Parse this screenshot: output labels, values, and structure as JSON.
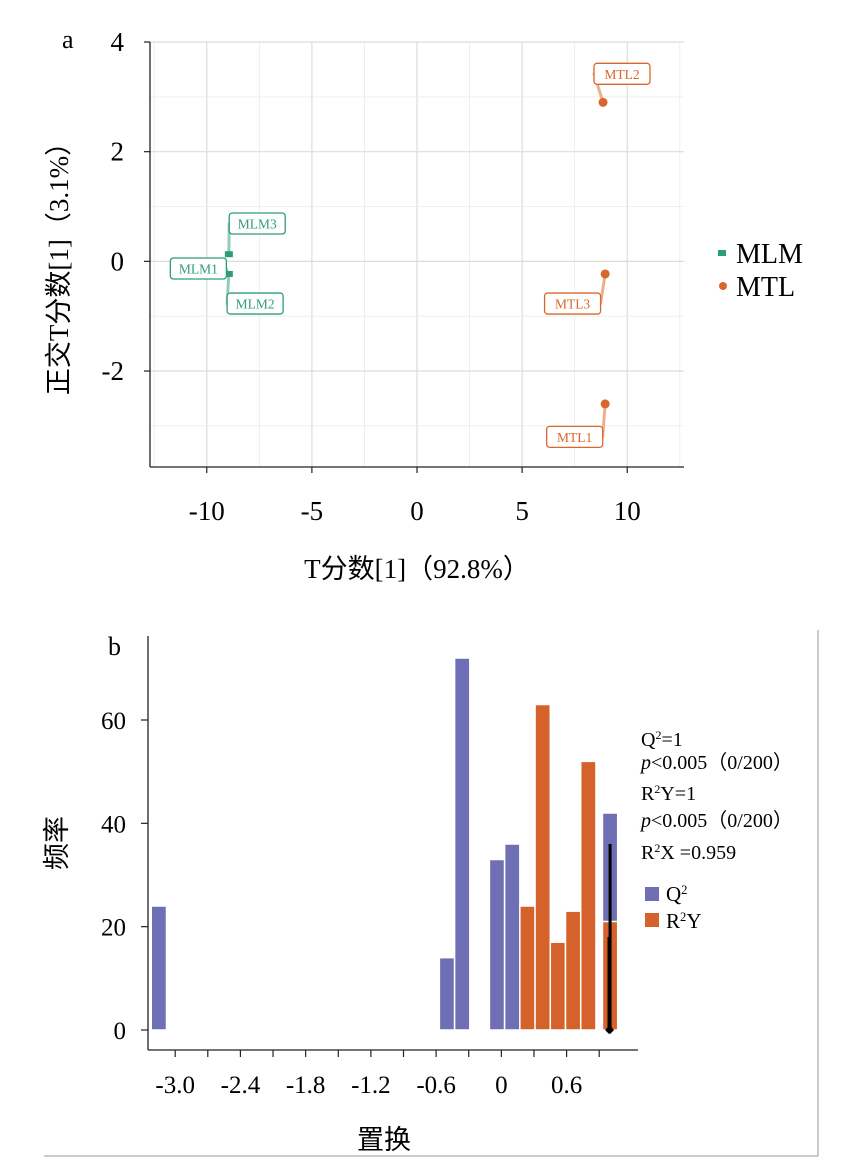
{
  "figure": {
    "panel_a_label": "a",
    "panel_b_label": "b"
  },
  "chart_data": [
    {
      "type": "scatter",
      "xlabel": "T分数[1]（92.8%）",
      "ylabel": "正交T分数[1]（3.1%）",
      "xlim": [
        -12.7,
        12.7
      ],
      "ylim": [
        -3.75,
        4.0
      ],
      "xticks": [
        "-10",
        "-5",
        "0",
        "5",
        "10"
      ],
      "xtick_values": [
        -10,
        -5,
        0,
        5,
        10
      ],
      "yticks": [
        "4",
        "2",
        "0",
        "-2"
      ],
      "ytick_values": [
        4,
        2,
        0,
        -2
      ],
      "grid": true,
      "legend_position": "right",
      "series": [
        {
          "name": "MLM",
          "color": "#2e9c7a",
          "marker": "square",
          "points": [
            {
              "label": "MLM1",
              "x": -9.0,
              "y": -0.23,
              "label_x": -10.4,
              "label_y": -0.13
            },
            {
              "label": "MLM2",
              "x": -8.95,
              "y": -0.23,
              "label_x": -7.7,
              "label_y": -0.77
            },
            {
              "label": "MLM3",
              "x": -8.95,
              "y": 0.13,
              "label_x": -7.6,
              "label_y": 0.69
            }
          ]
        },
        {
          "name": "MTL",
          "color": "#d9662b",
          "marker": "circle",
          "points": [
            {
              "label": "MTL1",
              "x": 8.95,
              "y": -2.6,
              "label_x": 7.5,
              "label_y": -3.2
            },
            {
              "label": "MTL2",
              "x": 8.85,
              "y": 2.9,
              "label_x": 9.75,
              "label_y": 3.42
            },
            {
              "label": "MTL3",
              "x": 8.95,
              "y": -0.23,
              "label_x": 7.4,
              "label_y": -0.77
            }
          ]
        }
      ]
    },
    {
      "type": "bar",
      "xlabel": "置换",
      "ylabel": "频率",
      "xlim": [
        -3.25,
        1.22
      ],
      "ylim": [
        0,
        74
      ],
      "xticks": [
        "-3.0",
        "-2.4",
        "-1.8",
        "-1.2",
        "-0.6",
        "0",
        "0.6"
      ],
      "xtick_values": [
        -3.0,
        -2.4,
        -1.8,
        -1.2,
        -0.6,
        0,
        0.6
      ],
      "yticks": [
        "0",
        "20",
        "40",
        "60"
      ],
      "ytick_values": [
        0,
        20,
        40,
        60
      ],
      "bin_width": 0.14,
      "legend_position": "right",
      "series": [
        {
          "name": "Q²",
          "name_base": "Q",
          "name_sup": "2",
          "color": "#6e6fb5",
          "bins": [
            {
              "x": -3.15,
              "value": 24
            },
            {
              "x": -0.5,
              "value": 14
            },
            {
              "x": -0.36,
              "value": 72
            },
            {
              "x": -0.04,
              "value": 33
            },
            {
              "x": 0.1,
              "value": 36
            },
            {
              "x": 1.0,
              "value": 42
            }
          ]
        },
        {
          "name": "R²Y",
          "name_base": "R",
          "name_sup": "2",
          "name_rest": "Y",
          "color": "#d5622a",
          "bins": [
            {
              "x": 0.24,
              "value": 24
            },
            {
              "x": 0.38,
              "value": 63
            },
            {
              "x": 0.52,
              "value": 17
            },
            {
              "x": 0.66,
              "value": 23
            },
            {
              "x": 0.8,
              "value": 52
            },
            {
              "x": 1.0,
              "value": 21
            }
          ]
        }
      ],
      "observed_markers": [
        {
          "x": 1.0,
          "value": 36
        },
        {
          "x": 0.99,
          "value": 18
        }
      ],
      "annotations": [
        {
          "base": "Q",
          "sup": "2",
          "rest": "=1",
          "italic": false
        },
        {
          "base": "p",
          "sup": "",
          "rest": "<0.005（0/200）",
          "italic": true
        },
        {
          "base": "R",
          "sup": "2",
          "rest": "Y=1",
          "italic": false
        },
        {
          "base": "p",
          "sup": "",
          "rest": "<0.005（0/200）",
          "italic": true
        },
        {
          "base": "R",
          "sup": "2",
          "rest": "X =0.959",
          "italic": false
        }
      ]
    }
  ]
}
